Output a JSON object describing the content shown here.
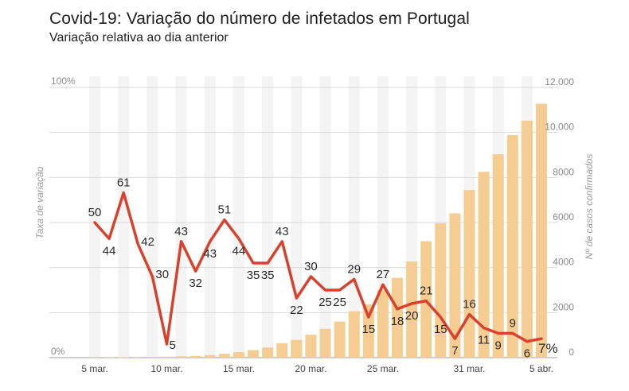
{
  "header": {
    "title": "Covid-19: Variação do número de infetados em Portugal",
    "subtitle": "Variação relativa ao dia anterior"
  },
  "colors": {
    "line": "#d9412c",
    "bars": "#f5cc92",
    "band": "#f4f4f4",
    "grid": "#d9d9d9"
  },
  "chart_data": {
    "type": "bar+line",
    "title": "Covid-19: Variação do número de infetados em Portugal",
    "subtitle": "Variação relativa ao dia anterior",
    "x": [
      "5 mar.",
      "6 mar.",
      "7 mar.",
      "8 mar.",
      "9 mar.",
      "10 mar.",
      "11 mar.",
      "12 mar.",
      "13 mar.",
      "14 mar.",
      "15 mar.",
      "16 mar.",
      "17 mar.",
      "18 mar.",
      "19 mar.",
      "20 mar.",
      "21 mar.",
      "22 mar.",
      "23 mar.",
      "24 mar.",
      "25 mar.",
      "26 mar.",
      "27 mar.",
      "28 mar.",
      "29 mar.",
      "30 mar.",
      "31 mar.",
      "1 abr.",
      "2 abr.",
      "3 abr.",
      "4 abr.",
      "5 abr."
    ],
    "x_tick_labels": [
      {
        "index": 0,
        "label": "5 mar."
      },
      {
        "index": 5,
        "label": "10 mar."
      },
      {
        "index": 10,
        "label": "15 mar."
      },
      {
        "index": 15,
        "label": "20 mar."
      },
      {
        "index": 20,
        "label": "25 mar."
      },
      {
        "index": 26,
        "label": "31 mar."
      },
      {
        "index": 31,
        "label": "5 abr."
      }
    ],
    "series": [
      {
        "name": "Taxa de variação",
        "type": "line",
        "axis": "left",
        "unit": "%",
        "values": [
          50,
          44,
          61,
          42,
          30,
          5,
          43,
          32,
          43,
          51,
          44,
          35,
          35,
          43,
          22,
          30,
          25,
          25,
          29,
          15,
          27,
          18,
          20,
          21,
          15,
          7,
          16,
          11,
          9,
          9,
          6,
          7
        ],
        "labels": [
          "50",
          "44",
          "61",
          "42",
          "30",
          "5",
          "43",
          "32",
          "43",
          "51",
          "44",
          "35",
          "35",
          "43",
          "22",
          "30",
          "25",
          "25",
          "29",
          "15",
          "27",
          "18",
          "20",
          "21",
          "15",
          "7",
          "16",
          "11",
          "9",
          "9",
          "6",
          "7%"
        ]
      },
      {
        "name": "Nº de casos confirmados",
        "type": "bar",
        "axis": "right",
        "values": [
          9,
          13,
          21,
          30,
          30,
          41,
          59,
          78,
          112,
          169,
          245,
          331,
          448,
          642,
          785,
          1020,
          1280,
          1600,
          2060,
          2362,
          2995,
          3544,
          4268,
          5170,
          5962,
          6408,
          7443,
          8251,
          9034,
          9886,
          10524,
          11278
        ]
      }
    ],
    "ylabel_left": "Taxa de variação",
    "ylabel_right": "Nº de casos confirmados",
    "ylim_left": [
      0,
      100
    ],
    "ylim_right": [
      0,
      12000
    ],
    "left_tick_labels": [
      {
        "value": 0,
        "label": "0%"
      },
      {
        "value": 100,
        "label": "100%"
      }
    ],
    "right_tick_labels": [
      {
        "value": 0,
        "label": "0"
      },
      {
        "value": 2000,
        "label": "2000"
      },
      {
        "value": 4000,
        "label": "4000"
      },
      {
        "value": 6000,
        "label": "6000"
      },
      {
        "value": 8000,
        "label": "8000"
      },
      {
        "value": 10000,
        "label": "10.000"
      },
      {
        "value": 12000,
        "label": "12.000"
      }
    ],
    "grid": true
  }
}
